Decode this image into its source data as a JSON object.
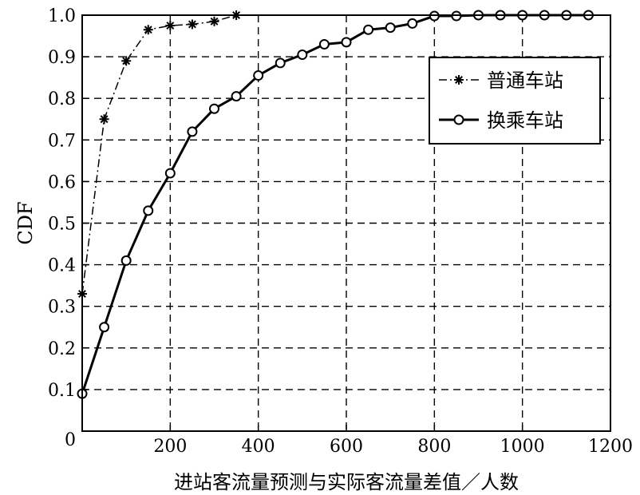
{
  "chart_data": {
    "type": "line",
    "xlabel": "进站客流量预测与实际客流量差值／人数",
    "ylabel": "CDF",
    "xlim": [
      0,
      1200
    ],
    "ylim": [
      0,
      1.0
    ],
    "grid": true,
    "grid_style": "dashed",
    "legend_position": "top-right",
    "x_ticks": [
      "0",
      "200",
      "400",
      "600",
      "800",
      "1000",
      "1200"
    ],
    "y_ticks": [
      "0",
      "0.1",
      "0.2",
      "0.3",
      "0.4",
      "0.5",
      "0.6",
      "0.7",
      "0.8",
      "0.9",
      "1.0"
    ],
    "series": [
      {
        "name": "普通车站",
        "style": "dash-dot",
        "marker": "star",
        "color": "#000000",
        "x": [
          0,
          50,
          100,
          150,
          200,
          250,
          300,
          350
        ],
        "y": [
          0.33,
          0.75,
          0.89,
          0.965,
          0.975,
          0.978,
          0.985,
          1.0
        ]
      },
      {
        "name": "换乘车站",
        "style": "solid",
        "marker": "circle",
        "color": "#000000",
        "x": [
          0,
          50,
          100,
          150,
          200,
          250,
          300,
          350,
          400,
          450,
          500,
          550,
          600,
          650,
          700,
          750,
          800,
          850,
          900,
          950,
          1000,
          1050,
          1100,
          1150
        ],
        "y": [
          0.09,
          0.25,
          0.41,
          0.53,
          0.62,
          0.72,
          0.775,
          0.805,
          0.855,
          0.885,
          0.905,
          0.93,
          0.935,
          0.965,
          0.97,
          0.98,
          0.998,
          0.998,
          1.0,
          1.0,
          1.0,
          1.0,
          1.0,
          1.0
        ]
      }
    ]
  }
}
